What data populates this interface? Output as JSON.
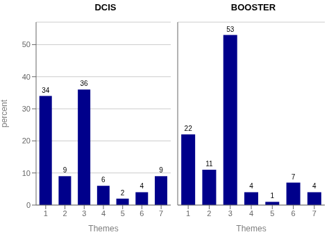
{
  "chart_data": [
    {
      "type": "bar",
      "title": "DCIS",
      "categories": [
        1,
        2,
        3,
        4,
        5,
        6,
        7
      ],
      "values": [
        34,
        9,
        36,
        6,
        2,
        4,
        9
      ],
      "color": "#00008B",
      "xlabel": "Themes",
      "ylabel": "percent",
      "ylim": [
        0,
        57
      ],
      "yticks": [
        0,
        10,
        20,
        30,
        40,
        50
      ],
      "grid": true,
      "data_labels": true
    },
    {
      "type": "bar",
      "title": "BOOSTER",
      "categories": [
        1,
        2,
        3,
        4,
        5,
        6,
        7
      ],
      "values": [
        22,
        11,
        53,
        4,
        1,
        7,
        4
      ],
      "color": "#00008B",
      "xlabel": "Themes",
      "ylim": [
        0,
        57
      ],
      "yticks": [
        0,
        10,
        20,
        30,
        40,
        50
      ],
      "grid": true,
      "data_labels": true,
      "tick_labels": "x"
    }
  ]
}
